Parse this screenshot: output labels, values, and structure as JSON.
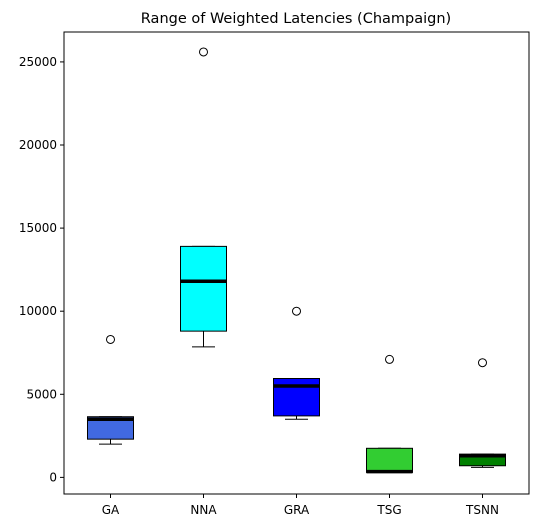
{
  "chart_data": {
    "type": "box",
    "title": "Range of Weighted Latencies (Champaign)",
    "xlabel": "",
    "ylabel": "",
    "ylim": [
      -1000,
      26800
    ],
    "yticks": [
      0,
      5000,
      10000,
      15000,
      20000,
      25000
    ],
    "ytick_labels": [
      "0",
      "5000",
      "10000",
      "15000",
      "20000",
      "25000"
    ],
    "grid": false,
    "categories": [
      "GA",
      "NNA",
      "GRA",
      "TSG",
      "TSNN"
    ],
    "boxes": [
      {
        "name": "GA",
        "whisker_low": 2000,
        "q1": 2300,
        "median": 3500,
        "q3": 3650,
        "whisker_high": 3650,
        "outliers": [
          8300
        ],
        "color": "#4169e1"
      },
      {
        "name": "NNA",
        "whisker_low": 7850,
        "q1": 8800,
        "median": 11800,
        "q3": 13900,
        "whisker_high": 13900,
        "outliers": [
          25600
        ],
        "color": "#00ffff"
      },
      {
        "name": "GRA",
        "whisker_low": 3500,
        "q1": 3700,
        "median": 5500,
        "q3": 5950,
        "whisker_high": 5950,
        "outliers": [
          10000
        ],
        "color": "#0000ff"
      },
      {
        "name": "TSG",
        "whisker_low": 300,
        "q1": 300,
        "median": 350,
        "q3": 1750,
        "whisker_high": 1750,
        "outliers": [
          7100
        ],
        "color": "#32cd32"
      },
      {
        "name": "TSNN",
        "whisker_low": 600,
        "q1": 700,
        "median": 1300,
        "q3": 1400,
        "whisker_high": 1400,
        "outliers": [
          6900
        ],
        "color": "#008000"
      }
    ]
  }
}
